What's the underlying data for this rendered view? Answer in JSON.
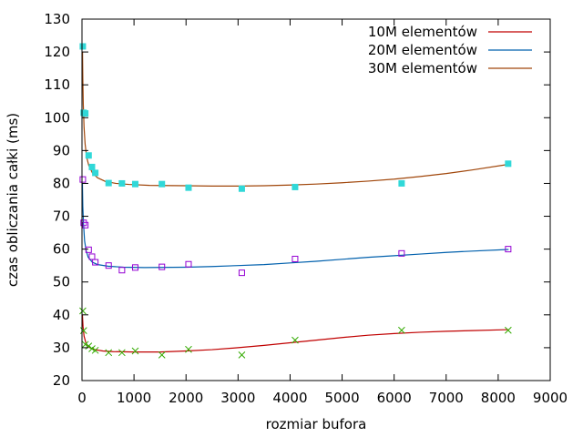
{
  "chart_data": {
    "type": "scatter",
    "title": "",
    "xlabel": "rozmiar bufora",
    "ylabel": "czas obliczania całki (ms)",
    "xlim": [
      0,
      9000
    ],
    "ylim": [
      20,
      130
    ],
    "xticks": [
      0,
      1000,
      2000,
      3000,
      4000,
      5000,
      6000,
      7000,
      8000,
      9000
    ],
    "yticks": [
      20,
      30,
      40,
      50,
      60,
      70,
      80,
      90,
      100,
      110,
      120,
      130
    ],
    "grid": false,
    "legend_position": "top-right",
    "series": [
      {
        "name": "10M elementów",
        "line_color": "#c00000",
        "marker": "x",
        "marker_color": "#33aa00",
        "points": [
          [
            16,
            41.2
          ],
          [
            32,
            35.2
          ],
          [
            64,
            31.0
          ],
          [
            128,
            30.5
          ],
          [
            192,
            29.7
          ],
          [
            256,
            29.2
          ],
          [
            512,
            28.5
          ],
          [
            768,
            28.5
          ],
          [
            1024,
            29.0
          ],
          [
            1536,
            27.8
          ],
          [
            2048,
            29.5
          ],
          [
            3072,
            27.8
          ],
          [
            4096,
            32.3
          ],
          [
            6144,
            35.3
          ],
          [
            8192,
            35.3
          ]
        ],
        "curve": [
          [
            8,
            40.0
          ],
          [
            20,
            36.5
          ],
          [
            40,
            33.5
          ],
          [
            80,
            31.2
          ],
          [
            150,
            30.0
          ],
          [
            250,
            29.4
          ],
          [
            400,
            29.0
          ],
          [
            600,
            28.8
          ],
          [
            1000,
            28.7
          ],
          [
            1500,
            28.7
          ],
          [
            2000,
            29.0
          ],
          [
            2500,
            29.4
          ],
          [
            3000,
            30.0
          ],
          [
            3500,
            30.7
          ],
          [
            4000,
            31.5
          ],
          [
            4500,
            32.3
          ],
          [
            5000,
            33.1
          ],
          [
            5500,
            33.8
          ],
          [
            6000,
            34.3
          ],
          [
            6500,
            34.7
          ],
          [
            7000,
            35.0
          ],
          [
            7500,
            35.2
          ],
          [
            8200,
            35.5
          ]
        ]
      },
      {
        "name": "20M elementów",
        "line_color": "#0060ad",
        "marker": "open-square",
        "marker_color": "#9400d3",
        "points": [
          [
            16,
            81.2
          ],
          [
            32,
            68.0
          ],
          [
            64,
            67.3
          ],
          [
            128,
            59.8
          ],
          [
            192,
            57.7
          ],
          [
            256,
            56.0
          ],
          [
            512,
            55.0
          ],
          [
            768,
            53.6
          ],
          [
            1024,
            54.4
          ],
          [
            1536,
            54.6
          ],
          [
            2048,
            55.4
          ],
          [
            3072,
            52.8
          ],
          [
            4096,
            57.0
          ],
          [
            6144,
            58.7
          ],
          [
            8192,
            60.0
          ]
        ],
        "curve": [
          [
            8,
            80.0
          ],
          [
            16,
            73.0
          ],
          [
            30,
            67.5
          ],
          [
            50,
            62.5
          ],
          [
            80,
            59.5
          ],
          [
            120,
            57.5
          ],
          [
            200,
            56.0
          ],
          [
            300,
            55.3
          ],
          [
            500,
            54.8
          ],
          [
            800,
            54.5
          ],
          [
            1200,
            54.4
          ],
          [
            2000,
            54.5
          ],
          [
            2500,
            54.7
          ],
          [
            3000,
            55.0
          ],
          [
            3500,
            55.3
          ],
          [
            4000,
            55.8
          ],
          [
            4500,
            56.3
          ],
          [
            5000,
            56.9
          ],
          [
            5500,
            57.5
          ],
          [
            6000,
            58.0
          ],
          [
            6500,
            58.5
          ],
          [
            7000,
            59.0
          ],
          [
            7500,
            59.4
          ],
          [
            8200,
            59.9
          ]
        ]
      },
      {
        "name": "30M elementów",
        "line_color": "#a0460a",
        "marker": "filled-square",
        "marker_color": "#30d8d8",
        "points": [
          [
            16,
            121.7
          ],
          [
            32,
            101.5
          ],
          [
            64,
            101.3
          ],
          [
            128,
            88.5
          ],
          [
            192,
            85.0
          ],
          [
            256,
            83.2
          ],
          [
            512,
            80.1
          ],
          [
            768,
            80.0
          ],
          [
            1024,
            79.8
          ],
          [
            1536,
            79.8
          ],
          [
            2048,
            78.7
          ],
          [
            3072,
            78.4
          ],
          [
            4096,
            78.9
          ],
          [
            6144,
            80.0
          ],
          [
            8192,
            86.0
          ]
        ],
        "curve": [
          [
            10,
            120.0
          ],
          [
            16,
            112.0
          ],
          [
            25,
            104.0
          ],
          [
            40,
            97.0
          ],
          [
            60,
            92.0
          ],
          [
            90,
            88.0
          ],
          [
            130,
            85.5
          ],
          [
            200,
            83.2
          ],
          [
            300,
            81.7
          ],
          [
            450,
            80.6
          ],
          [
            650,
            80.0
          ],
          [
            900,
            79.7
          ],
          [
            1300,
            79.4
          ],
          [
            2000,
            79.3
          ],
          [
            2500,
            79.2
          ],
          [
            3000,
            79.2
          ],
          [
            3500,
            79.3
          ],
          [
            4000,
            79.5
          ],
          [
            4500,
            79.8
          ],
          [
            5000,
            80.2
          ],
          [
            5500,
            80.7
          ],
          [
            6000,
            81.3
          ],
          [
            6500,
            82.1
          ],
          [
            7000,
            83.0
          ],
          [
            7500,
            84.1
          ],
          [
            8200,
            85.8
          ]
        ]
      }
    ]
  }
}
